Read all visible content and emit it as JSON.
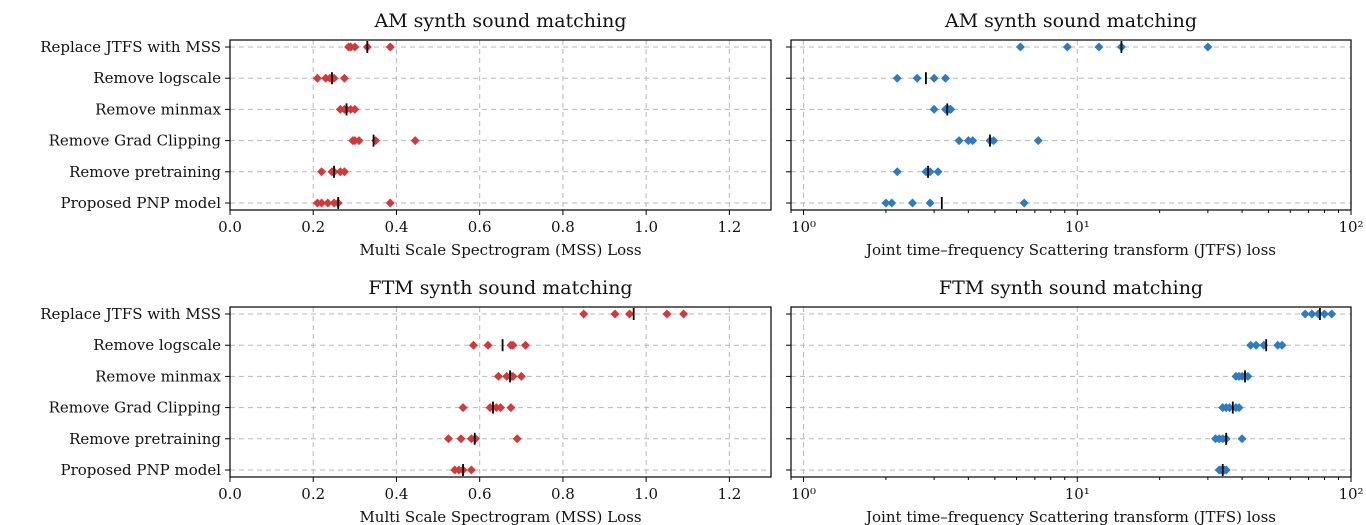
{
  "categories": [
    "Replace JTFS with MSS",
    "Remove logscale",
    "Remove minmax",
    "Remove Grad Clipping",
    "Remove pretraining",
    "Proposed PNP model"
  ],
  "colors": {
    "mss": "#d13a3a",
    "jtfs": "#2e7bbd",
    "mean": "#000000",
    "grid": "#b8b8b8"
  },
  "chart_data": [
    {
      "id": "am-mss",
      "type": "scatter",
      "title": "AM synth sound matching",
      "xlabel": "Multi Scale Spectrogram (MSS) Loss",
      "xscale": "linear",
      "xlim": [
        0.0,
        1.3
      ],
      "xticks": [
        0.0,
        0.2,
        0.4,
        0.6,
        0.8,
        1.0,
        1.2
      ],
      "xtick_labels": [
        "0.0",
        "0.2",
        "0.4",
        "0.6",
        "0.8",
        "1.0",
        "1.2"
      ],
      "marker_color": "#d13a3a",
      "series": [
        {
          "category": "Replace JTFS with MSS",
          "points": [
            0.285,
            0.29,
            0.3,
            0.33,
            0.385
          ],
          "mean": 0.33
        },
        {
          "category": "Remove logscale",
          "points": [
            0.21,
            0.23,
            0.24,
            0.25,
            0.275
          ],
          "mean": 0.245
        },
        {
          "category": "Remove minmax",
          "points": [
            0.265,
            0.275,
            0.28,
            0.29,
            0.3
          ],
          "mean": 0.28
        },
        {
          "category": "Remove Grad Clipping",
          "points": [
            0.295,
            0.3,
            0.31,
            0.35,
            0.445
          ],
          "mean": 0.345
        },
        {
          "category": "Remove pretraining",
          "points": [
            0.22,
            0.245,
            0.25,
            0.265,
            0.275
          ],
          "mean": 0.25
        },
        {
          "category": "Proposed PNP model",
          "points": [
            0.21,
            0.22,
            0.235,
            0.25,
            0.26,
            0.385
          ],
          "mean": 0.26
        }
      ]
    },
    {
      "id": "am-jtfs",
      "type": "scatter",
      "title": "AM synth sound matching",
      "xlabel": "Joint time–frequency Scattering transform (JTFS) loss",
      "xscale": "log",
      "xlim": [
        0.9,
        100
      ],
      "xticks": [
        1,
        10,
        100
      ],
      "xtick_labels": [
        "10⁰",
        "10¹",
        "10²"
      ],
      "marker_color": "#2e7bbd",
      "series": [
        {
          "category": "Replace JTFS with MSS",
          "points": [
            6.2,
            9.2,
            12.0,
            14.5,
            30.0
          ],
          "mean": 14.5
        },
        {
          "category": "Remove logscale",
          "points": [
            2.2,
            2.6,
            3.0,
            3.3
          ],
          "mean": 2.8
        },
        {
          "category": "Remove minmax",
          "points": [
            3.0,
            3.3,
            3.4,
            3.45
          ],
          "mean": 3.35
        },
        {
          "category": "Remove Grad Clipping",
          "points": [
            3.7,
            4.0,
            4.15,
            4.8,
            4.95,
            7.2
          ],
          "mean": 4.8
        },
        {
          "category": "Remove pretraining",
          "points": [
            2.2,
            2.8,
            2.9,
            3.1
          ],
          "mean": 2.85
        },
        {
          "category": "Proposed PNP model",
          "points": [
            2.0,
            2.1,
            2.5,
            2.9,
            6.4
          ],
          "mean": 3.2
        }
      ]
    },
    {
      "id": "ftm-mss",
      "type": "scatter",
      "title": "FTM synth sound matching",
      "xlabel": "Multi Scale Spectrogram (MSS) Loss",
      "xscale": "linear",
      "xlim": [
        0.0,
        1.3
      ],
      "xticks": [
        0.0,
        0.2,
        0.4,
        0.6,
        0.8,
        1.0,
        1.2
      ],
      "xtick_labels": [
        "0.0",
        "0.2",
        "0.4",
        "0.6",
        "0.8",
        "1.0",
        "1.2"
      ],
      "marker_color": "#d13a3a",
      "series": [
        {
          "category": "Replace JTFS with MSS",
          "points": [
            0.85,
            0.925,
            0.96,
            1.05,
            1.09
          ],
          "mean": 0.97
        },
        {
          "category": "Remove logscale",
          "points": [
            0.585,
            0.62,
            0.675,
            0.68,
            0.71
          ],
          "mean": 0.655
        },
        {
          "category": "Remove minmax",
          "points": [
            0.645,
            0.665,
            0.675,
            0.68,
            0.7
          ],
          "mean": 0.673
        },
        {
          "category": "Remove Grad Clipping",
          "points": [
            0.56,
            0.625,
            0.64,
            0.65,
            0.675
          ],
          "mean": 0.632
        },
        {
          "category": "Remove pretraining",
          "points": [
            0.525,
            0.555,
            0.58,
            0.59,
            0.69
          ],
          "mean": 0.588
        },
        {
          "category": "Proposed PNP model",
          "points": [
            0.54,
            0.55,
            0.56,
            0.58
          ],
          "mean": 0.56
        }
      ]
    },
    {
      "id": "ftm-jtfs",
      "type": "scatter",
      "title": "FTM synth sound matching",
      "xlabel": "Joint time–frequency Scattering transform (JTFS) loss",
      "xscale": "log",
      "xlim": [
        0.9,
        100
      ],
      "xticks": [
        1,
        10,
        100
      ],
      "xtick_labels": [
        "10⁰",
        "10¹",
        "10²"
      ],
      "marker_color": "#2e7bbd",
      "series": [
        {
          "category": "Replace JTFS with MSS",
          "points": [
            68,
            72,
            76,
            80,
            85
          ],
          "mean": 77
        },
        {
          "category": "Remove logscale",
          "points": [
            43,
            45,
            48,
            54,
            56
          ],
          "mean": 49
        },
        {
          "category": "Remove minmax",
          "points": [
            38,
            39,
            40,
            41,
            42
          ],
          "mean": 41
        },
        {
          "category": "Remove Grad Clipping",
          "points": [
            34,
            35,
            36,
            38,
            39
          ],
          "mean": 37
        },
        {
          "category": "Remove pretraining",
          "points": [
            32,
            33,
            34,
            35,
            40
          ],
          "mean": 35
        },
        {
          "category": "Proposed PNP model",
          "points": [
            33,
            33.5,
            34,
            34.5,
            35
          ],
          "mean": 34
        }
      ]
    }
  ]
}
